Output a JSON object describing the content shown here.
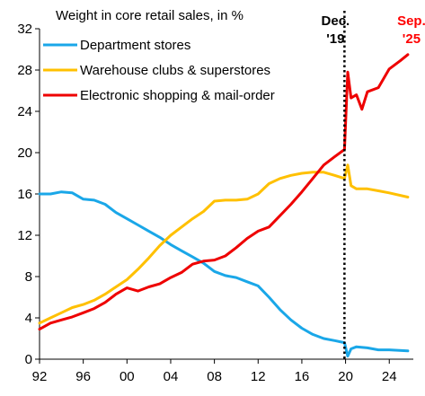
{
  "chart_data": {
    "type": "line",
    "title": "Weight in core retail sales, in %",
    "xlabel": "",
    "ylabel": "",
    "xlim": [
      1992,
      2026.2
    ],
    "ylim": [
      0,
      32
    ],
    "x_ticks": [
      1992,
      1996,
      2000,
      2004,
      2008,
      2012,
      2016,
      2020,
      2024
    ],
    "x_tick_labels": [
      "92",
      "96",
      "00",
      "04",
      "08",
      "12",
      "16",
      "20",
      "24"
    ],
    "y_ticks": [
      0,
      4,
      8,
      12,
      16,
      20,
      24,
      28,
      32
    ],
    "y_tick_labels": [
      "0",
      "4",
      "8",
      "12",
      "16",
      "20",
      "24",
      "28",
      "32"
    ],
    "grid": false,
    "legend_position": "top-left",
    "annotations": [
      {
        "x": 2019.9,
        "lines": [
          "Dec.",
          "'19"
        ],
        "color": "#000000",
        "style": "dotted-vertical-line"
      },
      {
        "x": 2025.7,
        "lines": [
          "Sep.",
          "'25"
        ],
        "color": "#ff0000",
        "style": "label"
      }
    ],
    "series": [
      {
        "name": "Department stores",
        "color": "#1aa7e8",
        "points": [
          [
            1992.0,
            16.0
          ],
          [
            1993.0,
            16.0
          ],
          [
            1994.0,
            16.2
          ],
          [
            1995.0,
            16.1
          ],
          [
            1996.0,
            15.5
          ],
          [
            1997.0,
            15.4
          ],
          [
            1998.0,
            15.0
          ],
          [
            1999.0,
            14.2
          ],
          [
            2000.0,
            13.6
          ],
          [
            2001.0,
            13.0
          ],
          [
            2002.0,
            12.4
          ],
          [
            2003.0,
            11.8
          ],
          [
            2004.0,
            11.1
          ],
          [
            2005.0,
            10.5
          ],
          [
            2006.0,
            9.9
          ],
          [
            2007.0,
            9.3
          ],
          [
            2008.0,
            8.5
          ],
          [
            2009.0,
            8.1
          ],
          [
            2010.0,
            7.9
          ],
          [
            2011.0,
            7.5
          ],
          [
            2012.0,
            7.1
          ],
          [
            2013.0,
            6.0
          ],
          [
            2014.0,
            4.8
          ],
          [
            2015.0,
            3.8
          ],
          [
            2016.0,
            3.0
          ],
          [
            2017.0,
            2.4
          ],
          [
            2018.0,
            2.0
          ],
          [
            2019.0,
            1.8
          ],
          [
            2019.9,
            1.6
          ],
          [
            2020.2,
            0.3
          ],
          [
            2020.5,
            1.0
          ],
          [
            2021.0,
            1.2
          ],
          [
            2022.0,
            1.1
          ],
          [
            2023.0,
            0.9
          ],
          [
            2024.0,
            0.9
          ],
          [
            2025.7,
            0.8
          ]
        ]
      },
      {
        "name": "Warehouse clubs & superstores",
        "color": "#ffc000",
        "points": [
          [
            1992.0,
            3.5
          ],
          [
            1993.0,
            4.0
          ],
          [
            1994.0,
            4.5
          ],
          [
            1995.0,
            5.0
          ],
          [
            1996.0,
            5.3
          ],
          [
            1997.0,
            5.7
          ],
          [
            1998.0,
            6.3
          ],
          [
            1999.0,
            7.0
          ],
          [
            2000.0,
            7.7
          ],
          [
            2001.0,
            8.7
          ],
          [
            2002.0,
            9.8
          ],
          [
            2003.0,
            11.0
          ],
          [
            2004.0,
            12.0
          ],
          [
            2005.0,
            12.8
          ],
          [
            2006.0,
            13.6
          ],
          [
            2007.0,
            14.3
          ],
          [
            2008.0,
            15.3
          ],
          [
            2009.0,
            15.4
          ],
          [
            2010.0,
            15.4
          ],
          [
            2011.0,
            15.5
          ],
          [
            2012.0,
            16.0
          ],
          [
            2013.0,
            17.0
          ],
          [
            2014.0,
            17.5
          ],
          [
            2015.0,
            17.8
          ],
          [
            2016.0,
            18.0
          ],
          [
            2017.0,
            18.1
          ],
          [
            2018.0,
            18.1
          ],
          [
            2019.0,
            17.8
          ],
          [
            2019.9,
            17.5
          ],
          [
            2020.2,
            18.8
          ],
          [
            2020.5,
            16.8
          ],
          [
            2021.0,
            16.5
          ],
          [
            2022.0,
            16.5
          ],
          [
            2023.0,
            16.3
          ],
          [
            2024.0,
            16.1
          ],
          [
            2025.7,
            15.7
          ]
        ]
      },
      {
        "name": "Electronic shopping & mail-order",
        "color": "#ee0000",
        "points": [
          [
            1992.0,
            2.9
          ],
          [
            1993.0,
            3.5
          ],
          [
            1994.0,
            3.8
          ],
          [
            1995.0,
            4.1
          ],
          [
            1996.0,
            4.5
          ],
          [
            1997.0,
            4.9
          ],
          [
            1998.0,
            5.5
          ],
          [
            1999.0,
            6.3
          ],
          [
            2000.0,
            6.9
          ],
          [
            2001.0,
            6.6
          ],
          [
            2002.0,
            7.0
          ],
          [
            2003.0,
            7.3
          ],
          [
            2004.0,
            7.9
          ],
          [
            2005.0,
            8.4
          ],
          [
            2006.0,
            9.2
          ],
          [
            2007.0,
            9.5
          ],
          [
            2008.0,
            9.6
          ],
          [
            2009.0,
            10.0
          ],
          [
            2010.0,
            10.8
          ],
          [
            2011.0,
            11.7
          ],
          [
            2012.0,
            12.4
          ],
          [
            2013.0,
            12.8
          ],
          [
            2014.0,
            13.9
          ],
          [
            2015.0,
            15.0
          ],
          [
            2016.0,
            16.2
          ],
          [
            2017.0,
            17.5
          ],
          [
            2018.0,
            18.8
          ],
          [
            2019.0,
            19.6
          ],
          [
            2019.9,
            20.3
          ],
          [
            2020.2,
            27.8
          ],
          [
            2020.5,
            25.3
          ],
          [
            2021.0,
            25.6
          ],
          [
            2021.5,
            24.2
          ],
          [
            2022.0,
            25.9
          ],
          [
            2023.0,
            26.3
          ],
          [
            2024.0,
            28.1
          ],
          [
            2025.0,
            28.9
          ],
          [
            2025.7,
            29.5
          ]
        ]
      }
    ]
  }
}
